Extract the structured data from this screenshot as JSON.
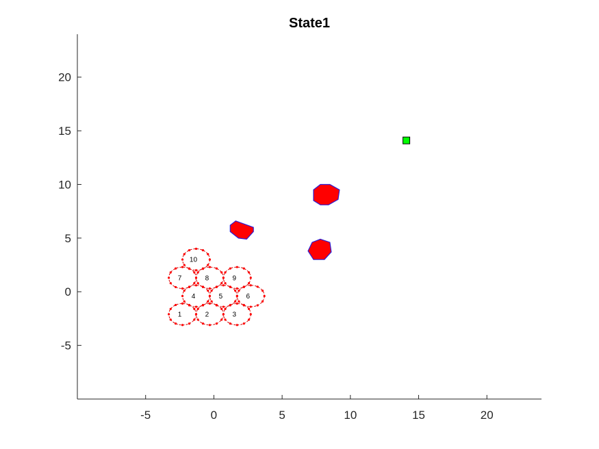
{
  "chart_data": {
    "type": "scatter",
    "title": "State1",
    "xlabel": "",
    "ylabel": "",
    "xlim": [
      -10,
      24
    ],
    "ylim": [
      -10,
      24
    ],
    "xticks": [
      "-5",
      "0",
      "5",
      "10",
      "15",
      "20"
    ],
    "xtick_values": [
      -5,
      0,
      5,
      10,
      15,
      20
    ],
    "yticks": [
      "-5",
      "0",
      "5",
      "10",
      "15",
      "20"
    ],
    "ytick_values": [
      -5,
      0,
      5,
      10,
      15,
      20
    ],
    "grid": false,
    "agents": [
      {
        "label": "1",
        "x": -2.3,
        "y": -2.1,
        "r": 1.0
      },
      {
        "label": "2",
        "x": -0.3,
        "y": -2.1,
        "r": 1.0
      },
      {
        "label": "3",
        "x": 1.7,
        "y": -2.1,
        "r": 1.0
      },
      {
        "label": "4",
        "x": -1.3,
        "y": -0.4,
        "r": 1.0
      },
      {
        "label": "5",
        "x": 0.7,
        "y": -0.4,
        "r": 1.0
      },
      {
        "label": "6",
        "x": 2.7,
        "y": -0.4,
        "r": 1.0
      },
      {
        "label": "7",
        "x": -2.3,
        "y": 1.3,
        "r": 1.0
      },
      {
        "label": "8",
        "x": -0.3,
        "y": 1.3,
        "r": 1.0
      },
      {
        "label": "9",
        "x": 1.7,
        "y": 1.3,
        "r": 1.0
      },
      {
        "label": "10",
        "x": -1.3,
        "y": 3.0,
        "r": 1.0
      }
    ],
    "obstacles": [
      {
        "vertices": [
          [
            1.6,
            6.6
          ],
          [
            2.9,
            6.0
          ],
          [
            2.9,
            5.6
          ],
          [
            2.4,
            4.9
          ],
          [
            1.8,
            5.0
          ],
          [
            1.2,
            5.6
          ],
          [
            1.2,
            6.2
          ]
        ]
      },
      {
        "vertices": [
          [
            7.8,
            4.9
          ],
          [
            8.5,
            4.6
          ],
          [
            8.6,
            3.7
          ],
          [
            8.1,
            3.0
          ],
          [
            7.3,
            3.0
          ],
          [
            6.9,
            3.8
          ],
          [
            7.2,
            4.6
          ]
        ]
      },
      {
        "vertices": [
          [
            7.8,
            10.0
          ],
          [
            8.5,
            10.0
          ],
          [
            9.2,
            9.5
          ],
          [
            9.1,
            8.6
          ],
          [
            8.4,
            8.1
          ],
          [
            7.8,
            8.1
          ],
          [
            7.3,
            8.5
          ],
          [
            7.3,
            9.5
          ]
        ]
      }
    ],
    "goal": {
      "x": 14.1,
      "y": 14.1
    },
    "colors": {
      "agent_edge": "#d40000",
      "agent_marker": "#ff0000",
      "obstacle_fill": "#ff0000",
      "obstacle_edge": "#2a1fd6",
      "goal_fill": "#00ff00",
      "axis": "#262626"
    }
  }
}
